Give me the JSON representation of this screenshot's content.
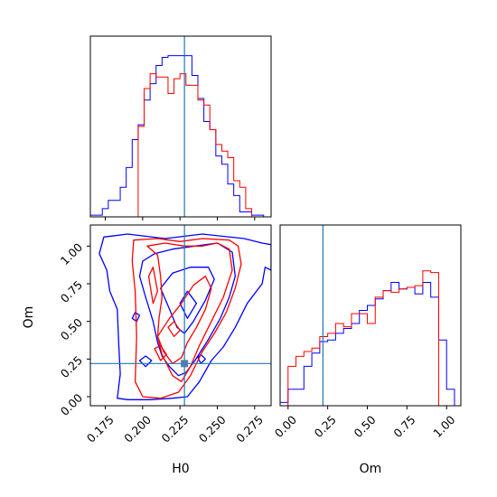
{
  "chart_data": {
    "type": "corner",
    "parameters": [
      "H0",
      "Om"
    ],
    "truths": {
      "H0": 0.228,
      "Om": 0.22
    },
    "truth_color": "#1f77b4",
    "series": [
      {
        "color": "#0000ff"
      },
      {
        "color": "#ff0000"
      }
    ],
    "panels": {
      "hist_H0": {
        "xlim": [
          0.165,
          0.286
        ],
        "xticks": [
          0.175,
          0.2,
          0.225,
          0.25,
          0.275
        ],
        "show_tick_labels": false,
        "bins": [
          0.165,
          0.169,
          0.173,
          0.177,
          0.181,
          0.185,
          0.189,
          0.193,
          0.197,
          0.201,
          0.205,
          0.209,
          0.213,
          0.217,
          0.221,
          0.225,
          0.229,
          0.233,
          0.237,
          0.241,
          0.245,
          0.249,
          0.253,
          0.257,
          0.261,
          0.265,
          0.269,
          0.273,
          0.277,
          0.281,
          0.286
        ],
        "blue_counts": [
          0.01,
          0.01,
          0.05,
          0.1,
          0.1,
          0.18,
          0.3,
          0.47,
          0.56,
          0.71,
          0.81,
          0.92,
          0.97,
          0.98,
          0.98,
          0.98,
          0.98,
          0.86,
          0.72,
          0.58,
          0.53,
          0.37,
          0.32,
          0.2,
          0.13,
          0.03,
          0.03,
          0.01,
          0.01,
          0.0
        ],
        "red_counts": [
          0.0,
          0.0,
          0.0,
          0.0,
          0.0,
          0.0,
          0.0,
          0.0,
          0.55,
          0.78,
          0.87,
          0.85,
          0.85,
          0.75,
          0.84,
          0.87,
          0.8,
          0.8,
          0.71,
          0.68,
          0.53,
          0.44,
          0.4,
          0.36,
          0.22,
          0.18,
          0.05,
          0.0,
          0.0,
          0.0
        ]
      },
      "scatter": {
        "xlim": [
          0.165,
          0.286
        ],
        "ylim": [
          -0.06,
          1.14
        ],
        "xticks": [
          0.175,
          0.2,
          0.225,
          0.25,
          0.275
        ],
        "xtick_labels": [
          "0.175",
          "0.200",
          "0.225",
          "0.250",
          "0.275"
        ],
        "yticks": [
          0.0,
          0.25,
          0.5,
          0.75,
          1.0
        ],
        "ytick_labels": [
          "0.00",
          "0.25",
          "0.50",
          "0.75",
          "1.00"
        ],
        "xlabel": "H0",
        "ylabel": "Om",
        "contours_blue": [
          [
            [
              0.174,
              1.06
            ],
            [
              0.19,
              1.08
            ],
            [
              0.215,
              1.05
            ],
            [
              0.24,
              1.08
            ],
            [
              0.268,
              1.05
            ],
            [
              0.28,
              1.02
            ],
            [
              0.286,
              1.01
            ],
            [
              0.286,
              0.84
            ],
            [
              0.282,
              0.86
            ],
            [
              0.28,
              0.75
            ],
            [
              0.27,
              0.62
            ],
            [
              0.262,
              0.46
            ],
            [
              0.254,
              0.33
            ],
            [
              0.246,
              0.24
            ],
            [
              0.238,
              0.1
            ],
            [
              0.23,
              0.0
            ],
            [
              0.22,
              -0.01
            ],
            [
              0.205,
              -0.02
            ],
            [
              0.19,
              -0.02
            ],
            [
              0.183,
              -0.01
            ],
            [
              0.185,
              0.15
            ],
            [
              0.184,
              0.35
            ],
            [
              0.183,
              0.58
            ],
            [
              0.178,
              0.7
            ],
            [
              0.176,
              0.84
            ],
            [
              0.171,
              0.95
            ],
            [
              0.174,
              1.06
            ]
          ],
          [
            [
              0.198,
              0.8
            ],
            [
              0.202,
              0.66
            ],
            [
              0.207,
              0.5
            ],
            [
              0.21,
              0.36
            ],
            [
              0.213,
              0.27
            ],
            [
              0.218,
              0.2
            ],
            [
              0.224,
              0.14
            ],
            [
              0.229,
              0.16
            ],
            [
              0.235,
              0.24
            ],
            [
              0.244,
              0.38
            ],
            [
              0.252,
              0.52
            ],
            [
              0.258,
              0.66
            ],
            [
              0.262,
              0.8
            ],
            [
              0.26,
              0.96
            ],
            [
              0.25,
              1.02
            ],
            [
              0.235,
              1.0
            ],
            [
              0.22,
              0.98
            ],
            [
              0.208,
              0.95
            ],
            [
              0.2,
              0.9
            ],
            [
              0.198,
              0.8
            ]
          ],
          [
            [
              0.212,
              0.72
            ],
            [
              0.218,
              0.58
            ],
            [
              0.223,
              0.46
            ],
            [
              0.228,
              0.42
            ],
            [
              0.234,
              0.5
            ],
            [
              0.242,
              0.64
            ],
            [
              0.248,
              0.78
            ],
            [
              0.244,
              0.86
            ],
            [
              0.232,
              0.86
            ],
            [
              0.22,
              0.82
            ],
            [
              0.212,
              0.72
            ]
          ],
          [
            [
              0.225,
              0.62
            ],
            [
              0.23,
              0.52
            ],
            [
              0.236,
              0.62
            ],
            [
              0.23,
              0.7
            ],
            [
              0.225,
              0.62
            ]
          ],
          [
            [
              0.198,
              0.24
            ],
            [
              0.202,
              0.2
            ],
            [
              0.206,
              0.24
            ],
            [
              0.202,
              0.27
            ],
            [
              0.198,
              0.24
            ]
          ],
          [
            [
              0.193,
              0.52
            ],
            [
              0.196,
              0.5
            ],
            [
              0.198,
              0.54
            ],
            [
              0.195,
              0.56
            ],
            [
              0.193,
              0.52
            ]
          ],
          [
            [
              0.237,
              0.26
            ],
            [
              0.239,
              0.22
            ],
            [
              0.242,
              0.25
            ],
            [
              0.239,
              0.28
            ],
            [
              0.237,
              0.26
            ]
          ]
        ],
        "contours_red": [
          [
            [
              0.194,
              1.04
            ],
            [
              0.21,
              1.05
            ],
            [
              0.225,
              1.03
            ],
            [
              0.24,
              1.05
            ],
            [
              0.258,
              1.04
            ],
            [
              0.264,
              1.0
            ],
            [
              0.266,
              0.88
            ],
            [
              0.262,
              0.72
            ],
            [
              0.256,
              0.56
            ],
            [
              0.248,
              0.42
            ],
            [
              0.24,
              0.3
            ],
            [
              0.232,
              0.14
            ],
            [
              0.224,
              0.03
            ],
            [
              0.212,
              -0.01
            ],
            [
              0.2,
              0.0
            ],
            [
              0.195,
              0.1
            ],
            [
              0.196,
              0.4
            ],
            [
              0.195,
              0.7
            ],
            [
              0.193,
              0.9
            ],
            [
              0.194,
              1.04
            ]
          ],
          [
            [
              0.203,
              1.0
            ],
            [
              0.21,
              0.94
            ],
            [
              0.212,
              0.8
            ],
            [
              0.213,
              0.66
            ],
            [
              0.211,
              0.52
            ],
            [
              0.21,
              0.4
            ],
            [
              0.213,
              0.28
            ],
            [
              0.22,
              0.14
            ],
            [
              0.226,
              0.1
            ],
            [
              0.232,
              0.2
            ],
            [
              0.238,
              0.34
            ],
            [
              0.246,
              0.5
            ],
            [
              0.254,
              0.66
            ],
            [
              0.26,
              0.84
            ],
            [
              0.258,
              0.98
            ],
            [
              0.25,
              1.02
            ],
            [
              0.24,
              1.0
            ],
            [
              0.228,
              1.0
            ],
            [
              0.215,
              1.02
            ],
            [
              0.203,
              1.0
            ]
          ],
          [
            [
              0.21,
              0.4
            ],
            [
              0.214,
              0.3
            ],
            [
              0.22,
              0.22
            ],
            [
              0.226,
              0.26
            ],
            [
              0.23,
              0.36
            ],
            [
              0.236,
              0.46
            ],
            [
              0.242,
              0.58
            ],
            [
              0.246,
              0.72
            ],
            [
              0.242,
              0.8
            ],
            [
              0.234,
              0.74
            ],
            [
              0.226,
              0.62
            ],
            [
              0.218,
              0.52
            ],
            [
              0.21,
              0.4
            ]
          ],
          [
            [
              0.208,
              0.32
            ],
            [
              0.212,
              0.24
            ],
            [
              0.216,
              0.28
            ],
            [
              0.212,
              0.34
            ],
            [
              0.208,
              0.32
            ]
          ],
          [
            [
              0.217,
              0.46
            ],
            [
              0.221,
              0.4
            ],
            [
              0.225,
              0.44
            ],
            [
              0.221,
              0.5
            ],
            [
              0.217,
              0.46
            ]
          ],
          [
            [
              0.204,
              0.8
            ],
            [
              0.207,
              0.62
            ],
            [
              0.21,
              0.7
            ],
            [
              0.207,
              0.86
            ],
            [
              0.204,
              0.8
            ]
          ]
        ],
        "truth_point": [
          0.228,
          0.22
        ]
      },
      "hist_Om": {
        "xlim": [
          -0.05,
          1.09
        ],
        "xticks": [
          0.0,
          0.25,
          0.5,
          0.75,
          1.0
        ],
        "xtick_labels": [
          "0.00",
          "0.25",
          "0.50",
          "0.75",
          "1.00"
        ],
        "xlabel": "Om",
        "bins": [
          -0.05,
          0.0,
          0.05,
          0.1,
          0.15,
          0.2,
          0.25,
          0.3,
          0.35,
          0.4,
          0.45,
          0.5,
          0.55,
          0.6,
          0.65,
          0.7,
          0.75,
          0.8,
          0.85,
          0.9,
          0.95,
          1.0,
          1.05,
          1.09
        ],
        "blue_counts": [
          0.02,
          0.1,
          0.1,
          0.24,
          0.32,
          0.39,
          0.4,
          0.44,
          0.47,
          0.5,
          0.58,
          0.61,
          0.65,
          0.7,
          0.75,
          0.71,
          0.72,
          0.68,
          0.75,
          0.66,
          0.4,
          0.1,
          0.0
        ],
        "red_counts": [
          0.0,
          0.24,
          0.3,
          0.33,
          0.35,
          0.42,
          0.44,
          0.5,
          0.48,
          0.56,
          0.56,
          0.5,
          0.66,
          0.7,
          0.69,
          0.71,
          0.72,
          0.73,
          0.82,
          0.81,
          0.0,
          0.0,
          0.0
        ]
      }
    }
  }
}
